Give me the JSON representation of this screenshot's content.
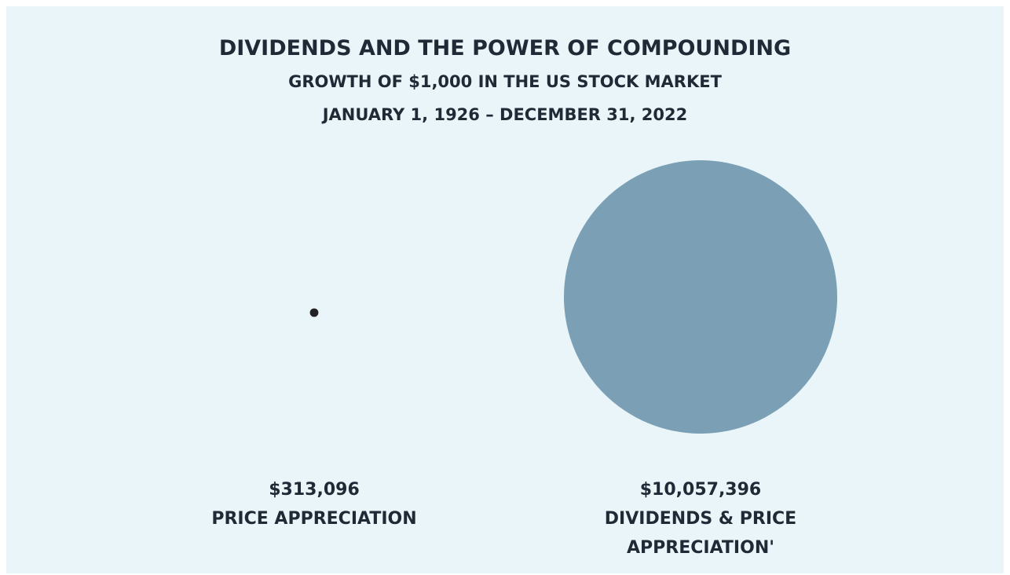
{
  "chart_data": {
    "type": "bubble",
    "title": "DIVIDENDS AND THE POWER OF COMPOUNDING",
    "subtitle": [
      "GROWTH OF $1,000 IN THE US STOCK MARKET",
      "JANUARY 1, 1926 – DECEMBER 31, 2022"
    ],
    "categories": [
      "PRICE APPRECIATION",
      "DIVIDENDS & PRICE APPRECIATION'"
    ],
    "values": [
      313096,
      10057396
    ],
    "value_labels": [
      "$313,096",
      "$10,057,396"
    ],
    "colors": [
      "#222222",
      "#7b9fb4"
    ]
  }
}
